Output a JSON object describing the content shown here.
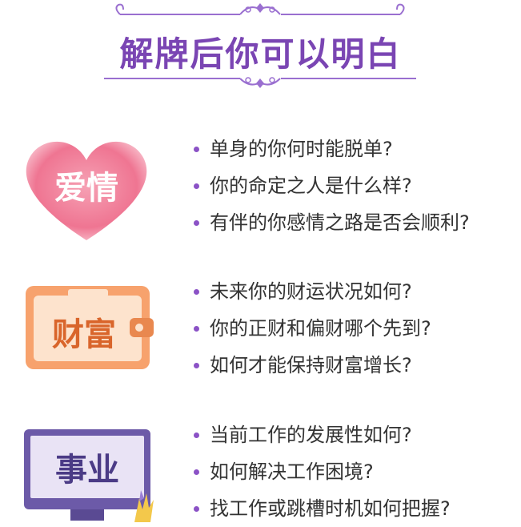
{
  "header": {
    "title": "解牌后你可以明白"
  },
  "colors": {
    "accent": "#7a45b3",
    "bullet": "#8b52c6",
    "heart": "#ee6f8c",
    "wallet": "#f7a26d",
    "monitor": "#6c5aa8"
  },
  "sections": [
    {
      "label": "爱情",
      "icon": "heart-icon",
      "items": [
        "单身的你何时能脱单?",
        "你的命定之人是什么样?",
        "有伴的你感情之路是否会顺利?"
      ]
    },
    {
      "label": "财富",
      "icon": "wallet-icon",
      "items": [
        "未来你的财运状况如何?",
        "你的正财和偏财哪个先到?",
        "如何才能保持财富增长?"
      ]
    },
    {
      "label": "事业",
      "icon": "monitor-icon",
      "items": [
        "当前工作的发展性如何?",
        "如何解决工作困境?",
        "找工作或跳槽时机如何把握?"
      ]
    }
  ]
}
